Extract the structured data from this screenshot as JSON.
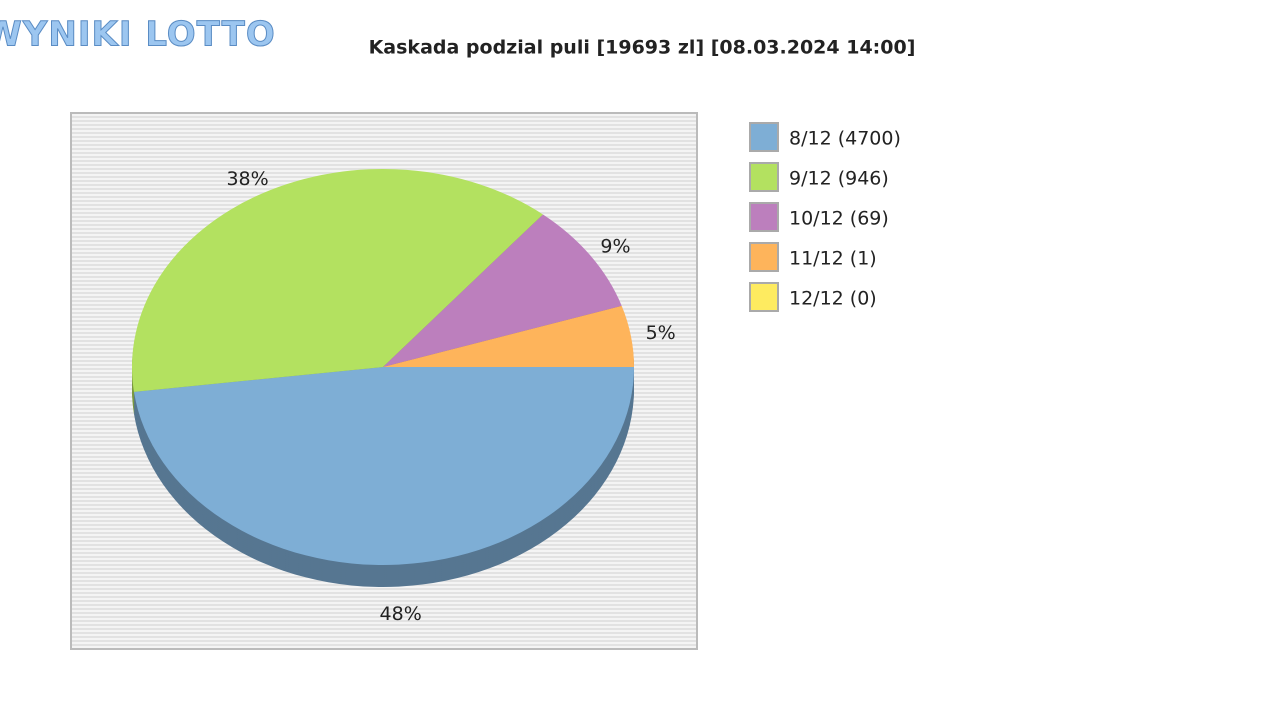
{
  "logo": "WYNIKI LOTTO",
  "chart_data": {
    "type": "pie",
    "title": "Kaskada podzial puli [19693 zl] [08.03.2024 14:00]",
    "categories": [
      "8/12 (4700)",
      "9/12 (946)",
      "10/12 (69)",
      "11/12 (1)",
      "12/12 (0)"
    ],
    "values": [
      48,
      38,
      9,
      5,
      0
    ],
    "value_labels": [
      "48%",
      "38%",
      "9%",
      "5%",
      null
    ],
    "colors": [
      "#7eaed5",
      "#b3e160",
      "#bc7fbd",
      "#feb45b",
      "#feeb60"
    ],
    "legend": "right"
  }
}
